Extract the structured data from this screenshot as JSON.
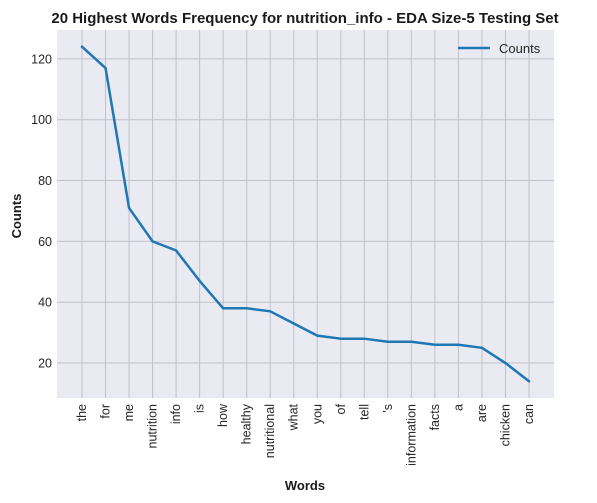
{
  "chart_data": {
    "type": "line",
    "title": "20 Highest Words Frequency for nutrition_info - EDA Size-5 Testing Set",
    "xlabel": "Words",
    "ylabel": "Counts",
    "categories": [
      "the",
      "for",
      "me",
      "nutrition",
      "info",
      "is",
      "how",
      "healthy",
      "nutritional",
      "what",
      "you",
      "of",
      "tell",
      "'s",
      "information",
      "facts",
      "a",
      "are",
      "chicken",
      "can"
    ],
    "series": [
      {
        "name": "Counts",
        "values": [
          124,
          117,
          71,
          60,
          57,
          47,
          38,
          38,
          37,
          33,
          29,
          28,
          28,
          27,
          27,
          26,
          26,
          25,
          20,
          14
        ],
        "color": "#1f77b4"
      }
    ],
    "ylim": [
      8.5,
      129.5
    ],
    "yticks": [
      20,
      40,
      60,
      80,
      100,
      120
    ],
    "grid": true,
    "legend_position": "top-right",
    "background_color": "#eaeaf2",
    "grid_color": "#c0c0c8"
  }
}
